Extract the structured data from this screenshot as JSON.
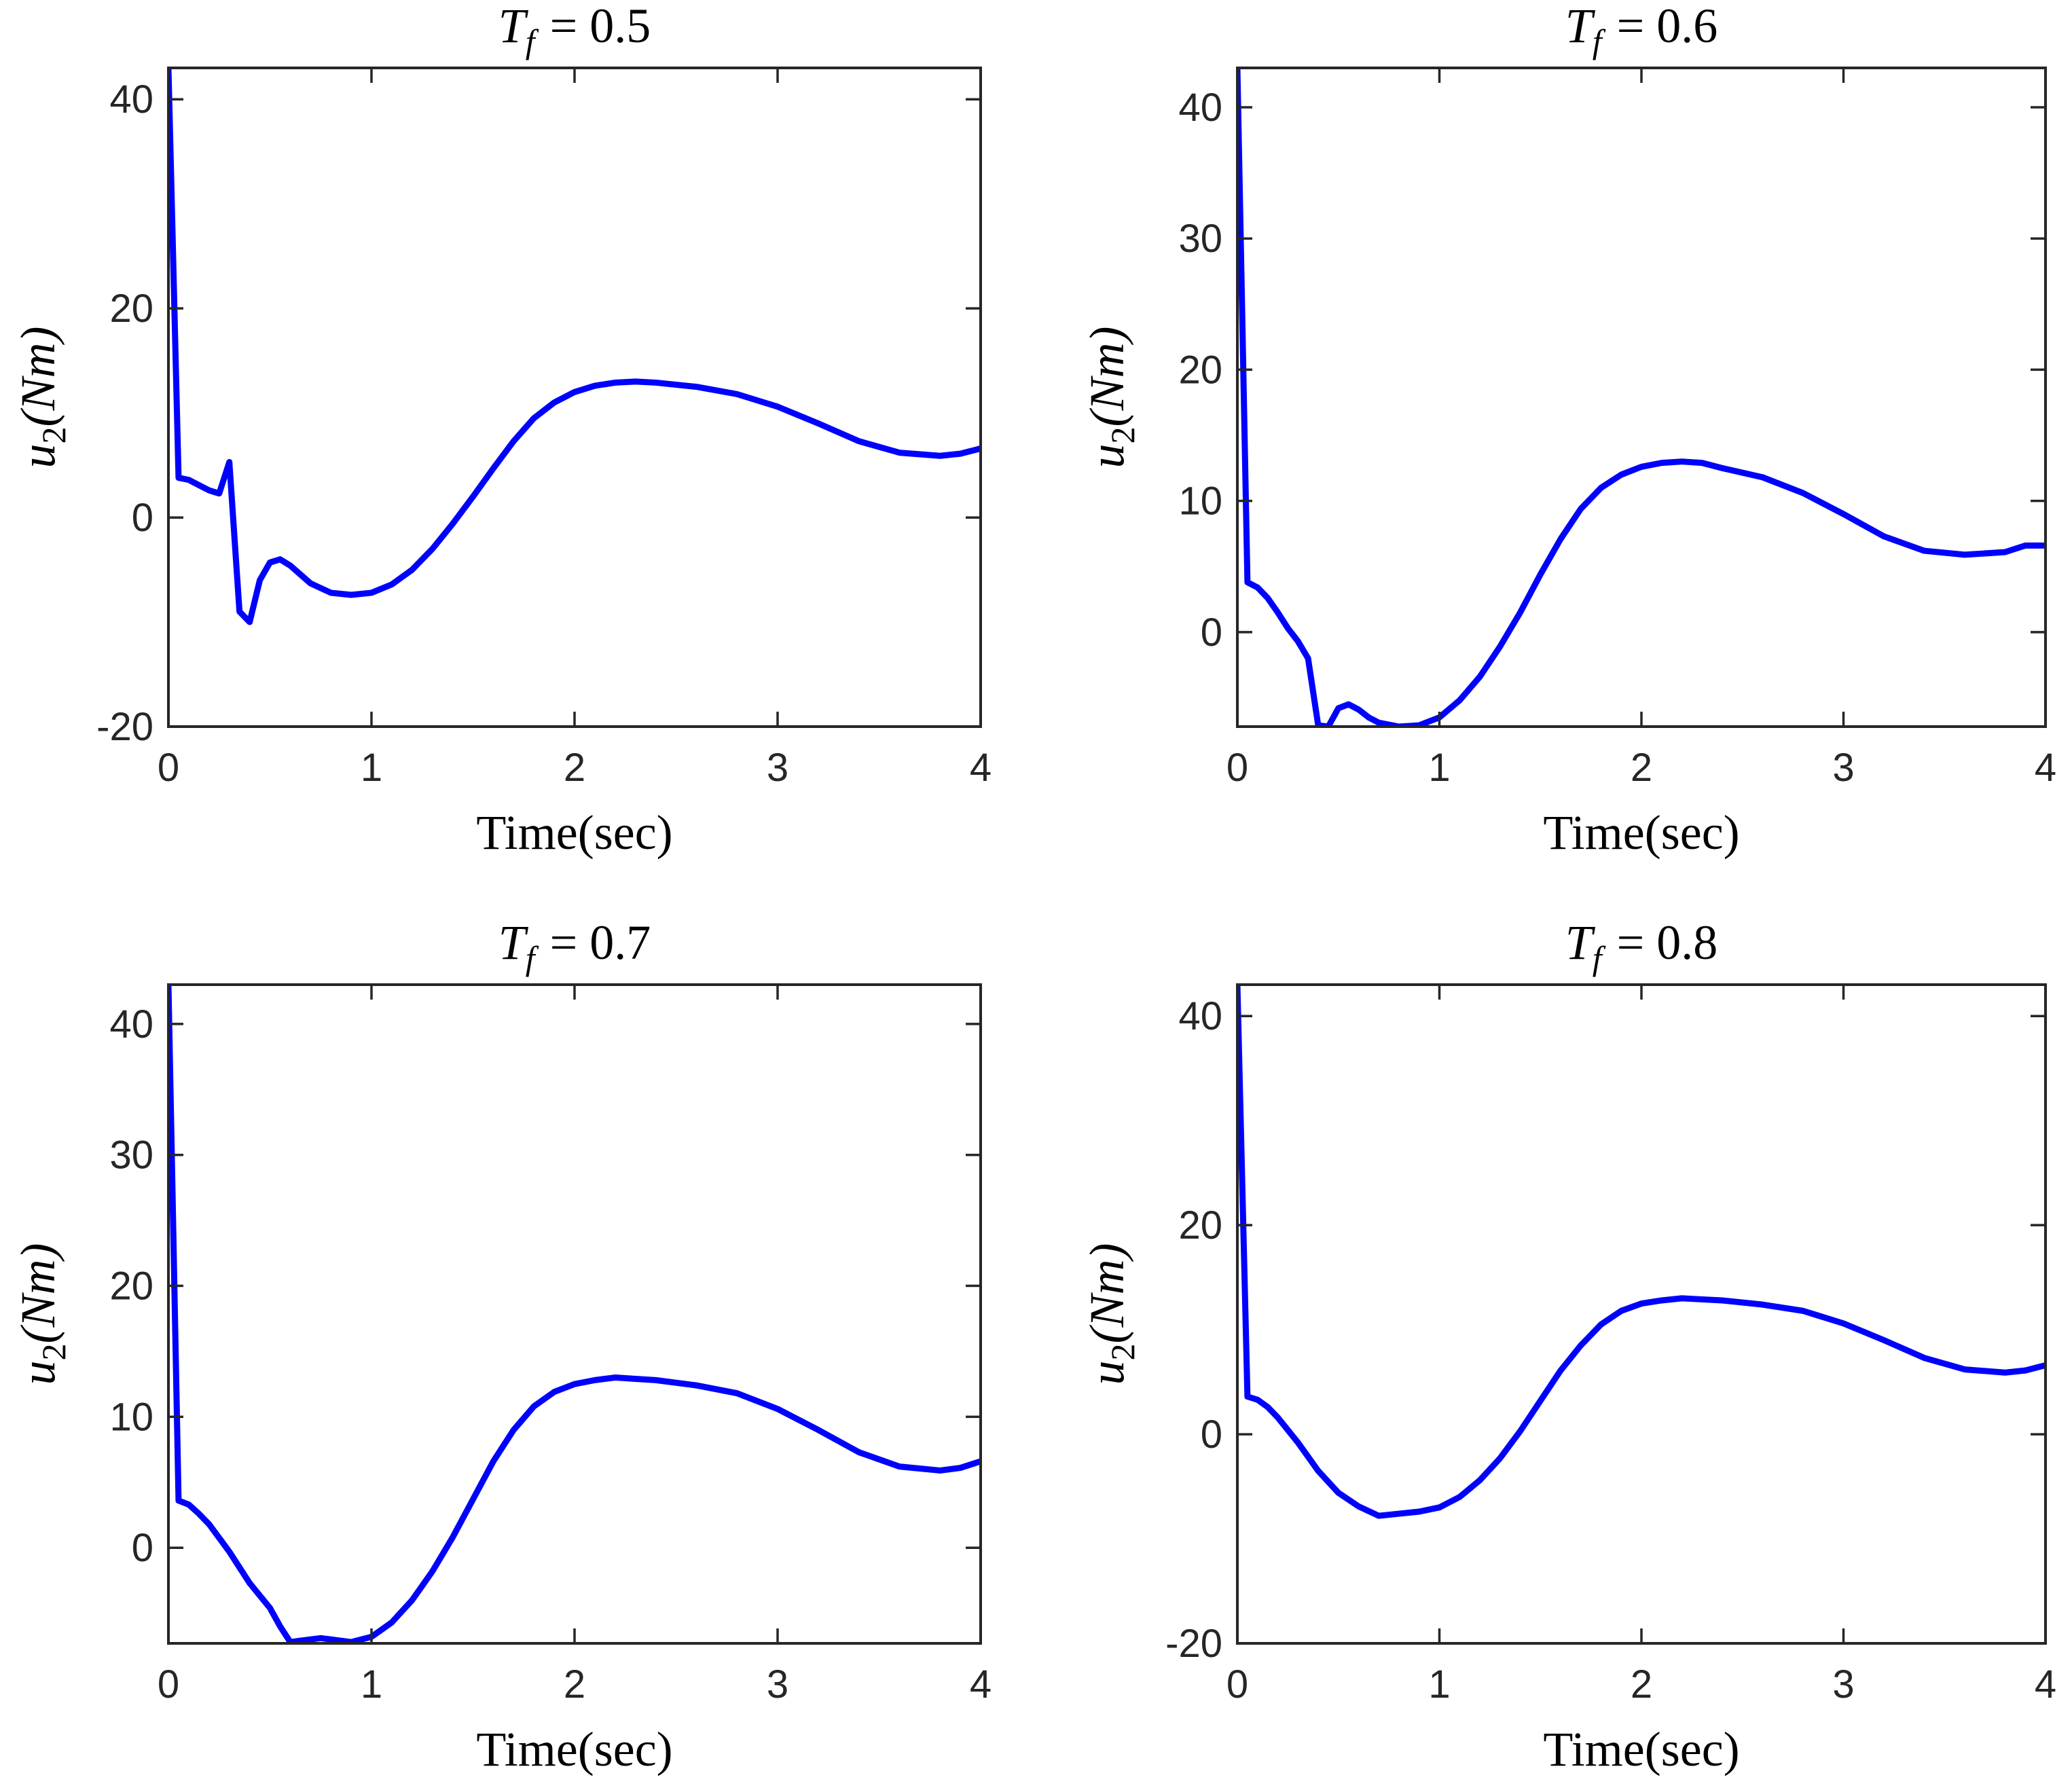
{
  "chart_data": [
    {
      "type": "line",
      "title_var": "T",
      "title_sub": "f",
      "title_value": "= 0.5",
      "xlabel": "Time(sec)",
      "ylabel_var": "u",
      "ylabel_sub": "2",
      "ylabel_unit": "(Nm)",
      "xlim": [
        0,
        4
      ],
      "ylim": [
        -20,
        43
      ],
      "xticks": [
        0,
        1,
        2,
        3,
        4
      ],
      "yticks": [
        -20,
        0,
        20,
        40
      ],
      "color": "#0000ff",
      "series": [
        {
          "name": "u2",
          "x": [
            0,
            0.05,
            0.1,
            0.15,
            0.2,
            0.25,
            0.3,
            0.35,
            0.4,
            0.45,
            0.5,
            0.55,
            0.6,
            0.7,
            0.8,
            0.9,
            1.0,
            1.1,
            1.2,
            1.3,
            1.4,
            1.5,
            1.6,
            1.7,
            1.8,
            1.9,
            2.0,
            2.1,
            2.2,
            2.3,
            2.4,
            2.6,
            2.8,
            3.0,
            3.2,
            3.4,
            3.6,
            3.8,
            3.9,
            4.0
          ],
          "y": [
            43,
            3.8,
            3.6,
            3.1,
            2.6,
            2.3,
            5.3,
            -9,
            -10,
            -6,
            -4.3,
            -4,
            -4.6,
            -6.3,
            -7.2,
            -7.4,
            -7.2,
            -6.4,
            -5,
            -3,
            -0.6,
            2,
            4.7,
            7.3,
            9.5,
            11,
            12,
            12.6,
            12.9,
            13,
            12.9,
            12.5,
            11.8,
            10.6,
            9,
            7.3,
            6.2,
            5.9,
            6.1,
            6.6
          ]
        }
      ]
    },
    {
      "type": "line",
      "title_var": "T",
      "title_sub": "f",
      "title_value": "= 0.6",
      "xlabel": "Time(sec)",
      "ylabel_var": "u",
      "ylabel_sub": "2",
      "ylabel_unit": "(Nm)",
      "xlim": [
        0,
        4
      ],
      "ylim": [
        -7.2,
        43
      ],
      "xticks": [
        0,
        1,
        2,
        3,
        4
      ],
      "yticks": [
        0,
        10,
        20,
        30,
        40
      ],
      "color": "#0000ff",
      "series": [
        {
          "name": "u2",
          "x": [
            0,
            0.05,
            0.1,
            0.15,
            0.2,
            0.25,
            0.3,
            0.35,
            0.4,
            0.45,
            0.5,
            0.55,
            0.6,
            0.65,
            0.7,
            0.8,
            0.9,
            1.0,
            1.1,
            1.2,
            1.3,
            1.4,
            1.5,
            1.6,
            1.7,
            1.8,
            1.9,
            2.0,
            2.1,
            2.2,
            2.3,
            2.4,
            2.6,
            2.8,
            3.0,
            3.2,
            3.4,
            3.6,
            3.8,
            3.9,
            4.0
          ],
          "y": [
            43,
            3.8,
            3.4,
            2.6,
            1.5,
            0.3,
            -0.7,
            -2,
            -7.1,
            -7.2,
            -5.8,
            -5.5,
            -5.9,
            -6.5,
            -6.9,
            -7.2,
            -7.1,
            -6.5,
            -5.2,
            -3.4,
            -1.1,
            1.5,
            4.4,
            7.1,
            9.4,
            11,
            12,
            12.6,
            12.9,
            13,
            12.9,
            12.5,
            11.8,
            10.6,
            9,
            7.3,
            6.2,
            5.9,
            6.1,
            6.6,
            6.6
          ]
        }
      ]
    },
    {
      "type": "line",
      "title_var": "T",
      "title_sub": "f",
      "title_value": "= 0.7",
      "xlabel": "Time(sec)",
      "ylabel_var": "u",
      "ylabel_sub": "2",
      "ylabel_unit": "(Nm)",
      "xlim": [
        0,
        4
      ],
      "ylim": [
        -7.3,
        43
      ],
      "xticks": [
        0,
        1,
        2,
        3,
        4
      ],
      "yticks": [
        0,
        10,
        20,
        30,
        40
      ],
      "color": "#0000ff",
      "series": [
        {
          "name": "u2",
          "x": [
            0,
            0.05,
            0.1,
            0.15,
            0.2,
            0.3,
            0.4,
            0.5,
            0.55,
            0.6,
            0.65,
            0.7,
            0.75,
            0.8,
            0.9,
            1.0,
            1.1,
            1.2,
            1.3,
            1.4,
            1.5,
            1.6,
            1.7,
            1.8,
            1.9,
            2.0,
            2.1,
            2.2,
            2.3,
            2.4,
            2.6,
            2.8,
            3.0,
            3.2,
            3.4,
            3.6,
            3.8,
            3.9,
            4.0
          ],
          "y": [
            43,
            3.6,
            3.3,
            2.6,
            1.8,
            -0.3,
            -2.7,
            -4.6,
            -6,
            -7.2,
            -7.1,
            -7,
            -6.9,
            -7,
            -7.2,
            -6.8,
            -5.7,
            -4,
            -1.8,
            0.8,
            3.7,
            6.6,
            9,
            10.8,
            11.9,
            12.5,
            12.8,
            13,
            12.9,
            12.8,
            12.4,
            11.8,
            10.6,
            9,
            7.3,
            6.2,
            5.9,
            6.1,
            6.6
          ]
        }
      ]
    },
    {
      "type": "line",
      "title_var": "T",
      "title_sub": "f",
      "title_value": "= 0.8",
      "xlabel": "Time(sec)",
      "ylabel_var": "u",
      "ylabel_sub": "2",
      "ylabel_unit": "(Nm)",
      "xlim": [
        0,
        4
      ],
      "ylim": [
        -20,
        43
      ],
      "xticks": [
        0,
        1,
        2,
        3,
        4
      ],
      "yticks": [
        -20,
        0,
        20,
        40
      ],
      "color": "#0000ff",
      "series": [
        {
          "name": "u2",
          "x": [
            0,
            0.05,
            0.1,
            0.15,
            0.2,
            0.3,
            0.4,
            0.5,
            0.6,
            0.7,
            0.8,
            0.9,
            1.0,
            1.1,
            1.2,
            1.3,
            1.4,
            1.5,
            1.6,
            1.7,
            1.8,
            1.9,
            2.0,
            2.1,
            2.2,
            2.3,
            2.4,
            2.6,
            2.8,
            3.0,
            3.2,
            3.4,
            3.6,
            3.8,
            3.9,
            4.0
          ],
          "y": [
            43,
            3.6,
            3.3,
            2.6,
            1.6,
            -0.8,
            -3.5,
            -5.6,
            -6.9,
            -7.8,
            -7.6,
            -7.4,
            -7,
            -6,
            -4.4,
            -2.3,
            0.3,
            3.2,
            6.1,
            8.5,
            10.5,
            11.8,
            12.5,
            12.8,
            13,
            12.9,
            12.8,
            12.4,
            11.8,
            10.6,
            9,
            7.3,
            6.2,
            5.9,
            6.1,
            6.6
          ]
        }
      ]
    }
  ]
}
